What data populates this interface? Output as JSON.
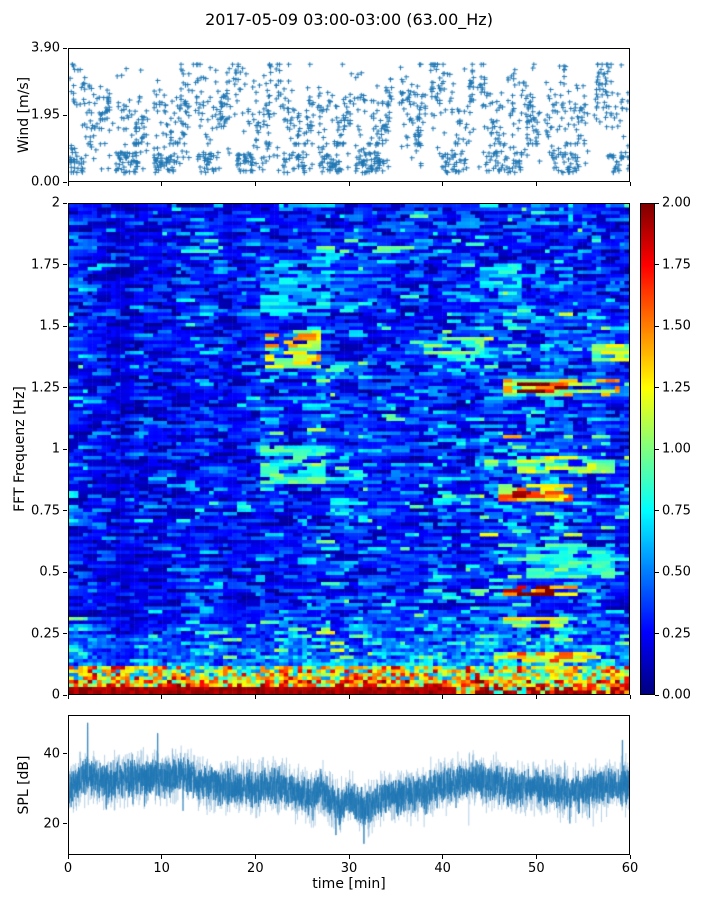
{
  "title": "2017-05-09 03:00-03:00 (63.00_Hz)",
  "xlabel": "time [min]",
  "x_axis": {
    "range": [
      0,
      60
    ],
    "tick_values": [
      0,
      10,
      20,
      30,
      40,
      50,
      60
    ],
    "tick_labels": [
      "0",
      "10",
      "20",
      "30",
      "40",
      "50",
      "60"
    ]
  },
  "colors": {
    "series_blue": "#1f77b4",
    "axis": "#000000",
    "background": "#ffffff"
  },
  "colorbar": {
    "colormap": "jet",
    "range": [
      0,
      2
    ],
    "tick_values": [
      0,
      0.25,
      0.5,
      0.75,
      1,
      1.25,
      1.5,
      1.75,
      2
    ],
    "tick_labels": [
      "0.00",
      "0.25",
      "0.50",
      "0.75",
      "1.00",
      "1.25",
      "1.50",
      "1.75",
      "2.00"
    ]
  },
  "chart_data": [
    {
      "type": "scatter",
      "name": "wind-speed",
      "ylabel": "Wind [m/s]",
      "ylim": [
        0,
        3.9
      ],
      "yticks": {
        "values": [
          0,
          1.95,
          3.9
        ],
        "labels": [
          "0.00",
          "1.95",
          "3.90"
        ]
      },
      "marker": "plus",
      "color": "#1f77b4",
      "pattern": {
        "seed": 7,
        "n_points": 1750,
        "t_quantum": 0.12,
        "high_band": [
          1.1,
          3.45
        ],
        "high_center_base": 2.15,
        "low_band": [
          0.25,
          0.85
        ],
        "low_band_intervals": [
          [
            0,
            1.6
          ],
          [
            5,
            7.4
          ],
          [
            9.1,
            11.6
          ],
          [
            13.7,
            16
          ],
          [
            17.9,
            20
          ],
          [
            22.4,
            25.2
          ],
          [
            26.8,
            29.2
          ],
          [
            30.7,
            33.8
          ],
          [
            39.9,
            42.6
          ],
          [
            44.6,
            48.5
          ],
          [
            51.4,
            54.5
          ],
          [
            57.8,
            60
          ]
        ],
        "gaps": [
          [
            4.4,
            5.0
          ],
          [
            8.5,
            9.1
          ],
          [
            12.9,
            13.5
          ],
          [
            17.2,
            17.7
          ],
          [
            21.6,
            22.1
          ],
          [
            26.2,
            26.7
          ],
          [
            30.2,
            30.7
          ],
          [
            34.6,
            35.4
          ],
          [
            38.2,
            38.7
          ],
          [
            43.4,
            44.0
          ],
          [
            50.3,
            50.9
          ],
          [
            55.6,
            56.2
          ]
        ]
      }
    },
    {
      "type": "heatmap",
      "name": "fft-spectrogram",
      "ylabel": "FFT Frequenz [Hz]",
      "ylim": [
        0,
        2
      ],
      "clim": [
        0,
        2
      ],
      "colormap": "jet",
      "yticks": {
        "values": [
          0,
          0.25,
          0.5,
          0.75,
          1,
          1.25,
          1.5,
          1.75,
          2
        ],
        "labels": [
          "0",
          "0.25",
          "0.5",
          "0.75",
          "1",
          "1.25",
          "1.5",
          "1.75",
          "2"
        ]
      },
      "grid": {
        "cols": 120,
        "rows": 140
      },
      "texture": {
        "seed": 3,
        "run_len_max": 4,
        "base_level": 0.2
      },
      "column_bands": [
        {
          "t": [
            0,
            2.2
          ],
          "mult": 1.15
        },
        {
          "t": [
            5.2,
            6.3
          ],
          "mult": 0.84
        },
        {
          "t": [
            10.8,
            11.6
          ],
          "mult": 0.86
        }
      ],
      "regions": [
        {
          "t": [
            44,
            60
          ],
          "f": [
            0.5,
            1.05
          ],
          "mult": 1.25
        },
        {
          "t": [
            44,
            60
          ],
          "f": [
            1.05,
            1.55
          ],
          "mult": 1.15
        },
        {
          "t": [
            20,
            28
          ],
          "f": [
            0.85,
            1.5
          ],
          "mult": 1.12
        }
      ],
      "features": [
        {
          "t": [
            21,
            26.5
          ],
          "f": [
            1.33,
            1.48
          ],
          "value": 1.25
        },
        {
          "t": [
            20.5,
            27
          ],
          "f": [
            0.86,
            1.02
          ],
          "value": 0.85
        },
        {
          "t": [
            20.5,
            27.5
          ],
          "f": [
            1.55,
            1.78
          ],
          "value": 0.68
        },
        {
          "t": [
            38,
            44
          ],
          "f": [
            1.36,
            1.45
          ],
          "value": 0.9
        },
        {
          "t": [
            44,
            48
          ],
          "f": [
            1.6,
            1.75
          ],
          "value": 0.7
        },
        {
          "t": [
            46.5,
            58.5
          ],
          "f": [
            1.22,
            1.29
          ],
          "value": 1.3
        },
        {
          "t": [
            48,
            53
          ],
          "f": [
            1.232,
            1.272
          ],
          "value": 1.9
        },
        {
          "t": [
            46,
            53.5
          ],
          "f": [
            0.79,
            0.86
          ],
          "value": 1.35
        },
        {
          "t": [
            47.5,
            50.5
          ],
          "f": [
            0.805,
            0.845
          ],
          "value": 1.8
        },
        {
          "t": [
            48,
            58
          ],
          "f": [
            0.9,
            0.97
          ],
          "value": 1.0
        },
        {
          "t": [
            46.5,
            54
          ],
          "f": [
            0.4,
            0.445
          ],
          "value": 1.6
        },
        {
          "t": [
            48,
            51.5
          ],
          "f": [
            0.405,
            0.44
          ],
          "value": 1.95
        },
        {
          "t": [
            46.5,
            54
          ],
          "f": [
            0.27,
            0.315
          ],
          "value": 1.15
        },
        {
          "t": [
            45.5,
            56.5
          ],
          "f": [
            0.13,
            0.175
          ],
          "value": 1.4
        },
        {
          "t": [
            49,
            58
          ],
          "f": [
            0.47,
            0.61
          ],
          "value": 0.8
        },
        {
          "t": [
            56,
            60
          ],
          "f": [
            1.36,
            1.43
          ],
          "value": 1.05
        }
      ],
      "low_freq": {
        "boost_below_hz": 0.34,
        "hot_below_hz": 0.115,
        "very_hot_below_hz": 0.06,
        "solid_red_below_hz": 0.03,
        "solid_red_until_min": 41,
        "max_value": 2.0
      }
    },
    {
      "type": "line",
      "name": "spl",
      "ylabel": "SPL [dB]",
      "ylim": [
        11,
        51
      ],
      "yticks": {
        "values": [
          20,
          40
        ],
        "labels": [
          "20",
          "40"
        ]
      },
      "color": "#1f77b4",
      "samples": 3600,
      "noise_db": 4.5,
      "mean_profile": {
        "t": [
          0,
          1,
          2,
          3,
          4,
          6,
          8,
          10,
          12,
          14,
          16,
          18,
          20,
          22,
          24,
          26,
          27,
          28,
          29,
          30,
          31,
          32,
          33,
          34,
          36,
          38,
          40,
          42,
          44,
          46,
          48,
          50,
          52,
          54,
          56,
          58,
          60
        ],
        "db": [
          30,
          32,
          34,
          32,
          32,
          33,
          33,
          33,
          34,
          32,
          31,
          30,
          30,
          31,
          29,
          27,
          30,
          27,
          25,
          27,
          25,
          24.5,
          27,
          28,
          28,
          29,
          31,
          32,
          33,
          31,
          30,
          31,
          30,
          29,
          30,
          31,
          31
        ]
      },
      "spikes": [
        {
          "t": 2.0,
          "db": 49
        },
        {
          "t": 9.5,
          "db": 46
        },
        {
          "t": 28.6,
          "db": 16.5
        },
        {
          "t": 31.6,
          "db": 14
        },
        {
          "t": 59.3,
          "db": 44
        }
      ]
    }
  ]
}
